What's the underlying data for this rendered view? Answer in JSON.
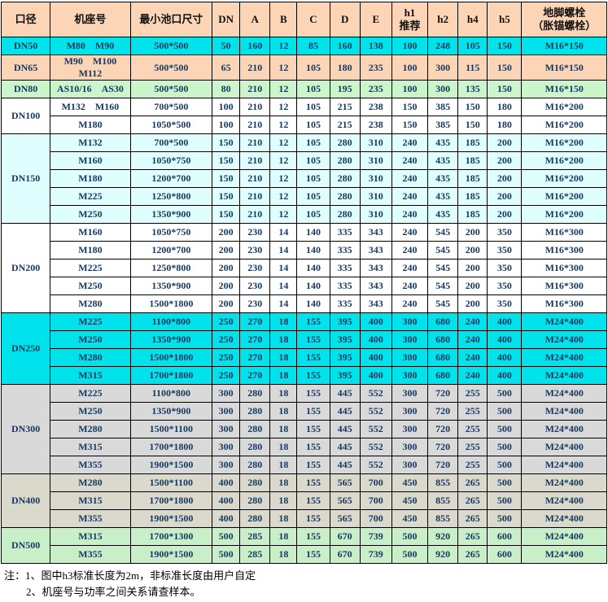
{
  "colors": {
    "header_bg": "#FBD5B5",
    "body_text": "#17375D",
    "border": "#000000",
    "cyan": "#00E3EC",
    "peach": "#FBD5B5",
    "green_light": "#CCF5CC",
    "green": "#C9EFC9",
    "pale_cyan": "#DFFFFF",
    "gray": "#D9D9D9",
    "tan_gray": "#DBD8CC",
    "white": "#FFFFFF"
  },
  "table": {
    "headers": [
      "口径",
      "机座号",
      "最小池口尺寸",
      "DN",
      "A",
      "B",
      "C",
      "D",
      "E",
      "h1\n推荐",
      "h2",
      "h4",
      "h5",
      "地脚螺栓\n（胀锚螺栓）"
    ],
    "groups": [
      {
        "diameter": "DN50",
        "bg": "#00E3EC",
        "rows": [
          {
            "frame": "M80　M90",
            "pool": "500*500",
            "values": [
              "50",
              "160",
              "12",
              "85",
              "160",
              "138",
              "100",
              "248",
              "105",
              "150",
              "M16*150"
            ]
          }
        ]
      },
      {
        "diameter": "DN65",
        "bg": "#FBD5B5",
        "rows": [
          {
            "frame": "M90　M100\nM112",
            "pool": "500*500",
            "values": [
              "65",
              "210",
              "12",
              "105",
              "180",
              "235",
              "100",
              "300",
              "115",
              "150",
              "M16*150"
            ]
          }
        ]
      },
      {
        "diameter": "DN80",
        "bg": "#CCF5CC",
        "rows": [
          {
            "frame": "AS10/16　AS30",
            "pool": "500*500",
            "values": [
              "80",
              "210",
              "12",
              "105",
              "195",
              "235",
              "100",
              "300",
              "135",
              "150",
              "M16*150"
            ]
          }
        ]
      },
      {
        "diameter": "DN100",
        "bg": "#FFFFFF",
        "rows": [
          {
            "frame": "M132　M160",
            "pool": "700*500",
            "values": [
              "100",
              "210",
              "12",
              "105",
              "215",
              "238",
              "150",
              "385",
              "150",
              "180",
              "M16*200"
            ]
          },
          {
            "frame": "M180",
            "pool": "1050*500",
            "values": [
              "100",
              "210",
              "12",
              "105",
              "215",
              "238",
              "150",
              "385",
              "150",
              "180",
              "M16*200"
            ]
          }
        ]
      },
      {
        "diameter": "DN150",
        "bg": "#DFFFFF",
        "rows": [
          {
            "frame": "M132",
            "pool": "700*500",
            "values": [
              "150",
              "210",
              "12",
              "105",
              "280",
              "310",
              "240",
              "435",
              "185",
              "200",
              "M16*200"
            ]
          },
          {
            "frame": "M160",
            "pool": "1050*750",
            "values": [
              "150",
              "210",
              "12",
              "105",
              "280",
              "310",
              "240",
              "435",
              "185",
              "200",
              "M16*200"
            ]
          },
          {
            "frame": "M180",
            "pool": "1200*700",
            "values": [
              "150",
              "210",
              "12",
              "105",
              "280",
              "310",
              "240",
              "435",
              "185",
              "200",
              "M16*200"
            ]
          },
          {
            "frame": "M225",
            "pool": "1250*800",
            "values": [
              "150",
              "210",
              "12",
              "105",
              "280",
              "310",
              "240",
              "435",
              "185",
              "200",
              "M16*200"
            ]
          },
          {
            "frame": "M250",
            "pool": "1350*900",
            "values": [
              "150",
              "210",
              "12",
              "105",
              "280",
              "310",
              "240",
              "435",
              "185",
              "200",
              "M16*200"
            ]
          }
        ]
      },
      {
        "diameter": "DN200",
        "bg": "#FFFFFF",
        "rows": [
          {
            "frame": "M160",
            "pool": "1050*750",
            "values": [
              "200",
              "230",
              "14",
              "140",
              "335",
              "343",
              "240",
              "545",
              "200",
              "350",
              "M16*300"
            ]
          },
          {
            "frame": "M180",
            "pool": "1200*700",
            "values": [
              "200",
              "230",
              "14",
              "140",
              "335",
              "343",
              "240",
              "545",
              "200",
              "350",
              "M16*300"
            ]
          },
          {
            "frame": "M225",
            "pool": "1250*800",
            "values": [
              "200",
              "230",
              "14",
              "140",
              "335",
              "343",
              "240",
              "545",
              "200",
              "350",
              "M16*300"
            ]
          },
          {
            "frame": "M250",
            "pool": "1350*900",
            "values": [
              "200",
              "230",
              "14",
              "140",
              "335",
              "343",
              "240",
              "545",
              "200",
              "350",
              "M16*300"
            ]
          },
          {
            "frame": "M280",
            "pool": "1500*1800",
            "values": [
              "200",
              "230",
              "14",
              "140",
              "335",
              "343",
              "240",
              "545",
              "200",
              "350",
              "M16*300"
            ]
          }
        ]
      },
      {
        "diameter": "DN250",
        "bg": "#00E3EC",
        "rows": [
          {
            "frame": "M225",
            "pool": "1100*800",
            "values": [
              "250",
              "270",
              "18",
              "155",
              "395",
              "400",
              "300",
              "680",
              "240",
              "400",
              "M24*400"
            ]
          },
          {
            "frame": "M250",
            "pool": "1350*900",
            "values": [
              "250",
              "270",
              "18",
              "155",
              "395",
              "400",
              "300",
              "680",
              "240",
              "400",
              "M24*400"
            ]
          },
          {
            "frame": "M280",
            "pool": "1500*1800",
            "values": [
              "250",
              "270",
              "18",
              "155",
              "395",
              "400",
              "300",
              "680",
              "240",
              "400",
              "M24*400"
            ]
          },
          {
            "frame": "M315",
            "pool": "1700*1800",
            "values": [
              "250",
              "270",
              "18",
              "155",
              "395",
              "400",
              "300",
              "680",
              "240",
              "400",
              "M24*400"
            ]
          }
        ]
      },
      {
        "diameter": "DN300",
        "bg": "#D9D9D9",
        "rows": [
          {
            "frame": "M225",
            "pool": "1100*800",
            "values": [
              "300",
              "280",
              "18",
              "155",
              "445",
              "552",
              "300",
              "720",
              "255",
              "500",
              "M24*400"
            ]
          },
          {
            "frame": "M250",
            "pool": "1350*900",
            "values": [
              "300",
              "280",
              "18",
              "155",
              "445",
              "552",
              "300",
              "720",
              "255",
              "500",
              "M24*400"
            ]
          },
          {
            "frame": "M280",
            "pool": "1500*1100",
            "values": [
              "300",
              "280",
              "18",
              "155",
              "445",
              "552",
              "300",
              "720",
              "255",
              "500",
              "M24*400"
            ]
          },
          {
            "frame": "M315",
            "pool": "1700*1800",
            "values": [
              "300",
              "280",
              "18",
              "155",
              "445",
              "552",
              "300",
              "720",
              "255",
              "500",
              "M24*400"
            ]
          },
          {
            "frame": "M355",
            "pool": "1900*1500",
            "values": [
              "300",
              "280",
              "18",
              "155",
              "445",
              "552",
              "300",
              "720",
              "255",
              "500",
              "M24*400"
            ]
          }
        ]
      },
      {
        "diameter": "DN400",
        "bg": "#DBD8CC",
        "rows": [
          {
            "frame": "M280",
            "pool": "1500*1100",
            "values": [
              "400",
              "280",
              "18",
              "155",
              "565",
              "700",
              "450",
              "855",
              "265",
              "500",
              "M24*400"
            ]
          },
          {
            "frame": "M315",
            "pool": "1700*1800",
            "values": [
              "400",
              "280",
              "18",
              "155",
              "565",
              "700",
              "450",
              "855",
              "265",
              "500",
              "M24*400"
            ]
          },
          {
            "frame": "M355",
            "pool": "1900*1500",
            "values": [
              "400",
              "280",
              "18",
              "155",
              "565",
              "700",
              "450",
              "855",
              "265",
              "500",
              "M24*400"
            ]
          }
        ]
      },
      {
        "diameter": "DN500",
        "bg": "#C9EFC9",
        "rows": [
          {
            "frame": "M315",
            "pool": "1700*1300",
            "values": [
              "500",
              "285",
              "18",
              "155",
              "670",
              "739",
              "500",
              "920",
              "265",
              "600",
              "M24*400"
            ]
          },
          {
            "frame": "M355",
            "pool": "1900*1500",
            "values": [
              "500",
              "285",
              "18",
              "155",
              "670",
              "739",
              "500",
              "920",
              "265",
              "600",
              "M24*400"
            ]
          }
        ]
      }
    ]
  },
  "notes": {
    "line1": "注：1、图中h3标准长度为2m，非标准长度由用户自定",
    "line2": "2、机座号与功率之间关系请查样本。"
  }
}
